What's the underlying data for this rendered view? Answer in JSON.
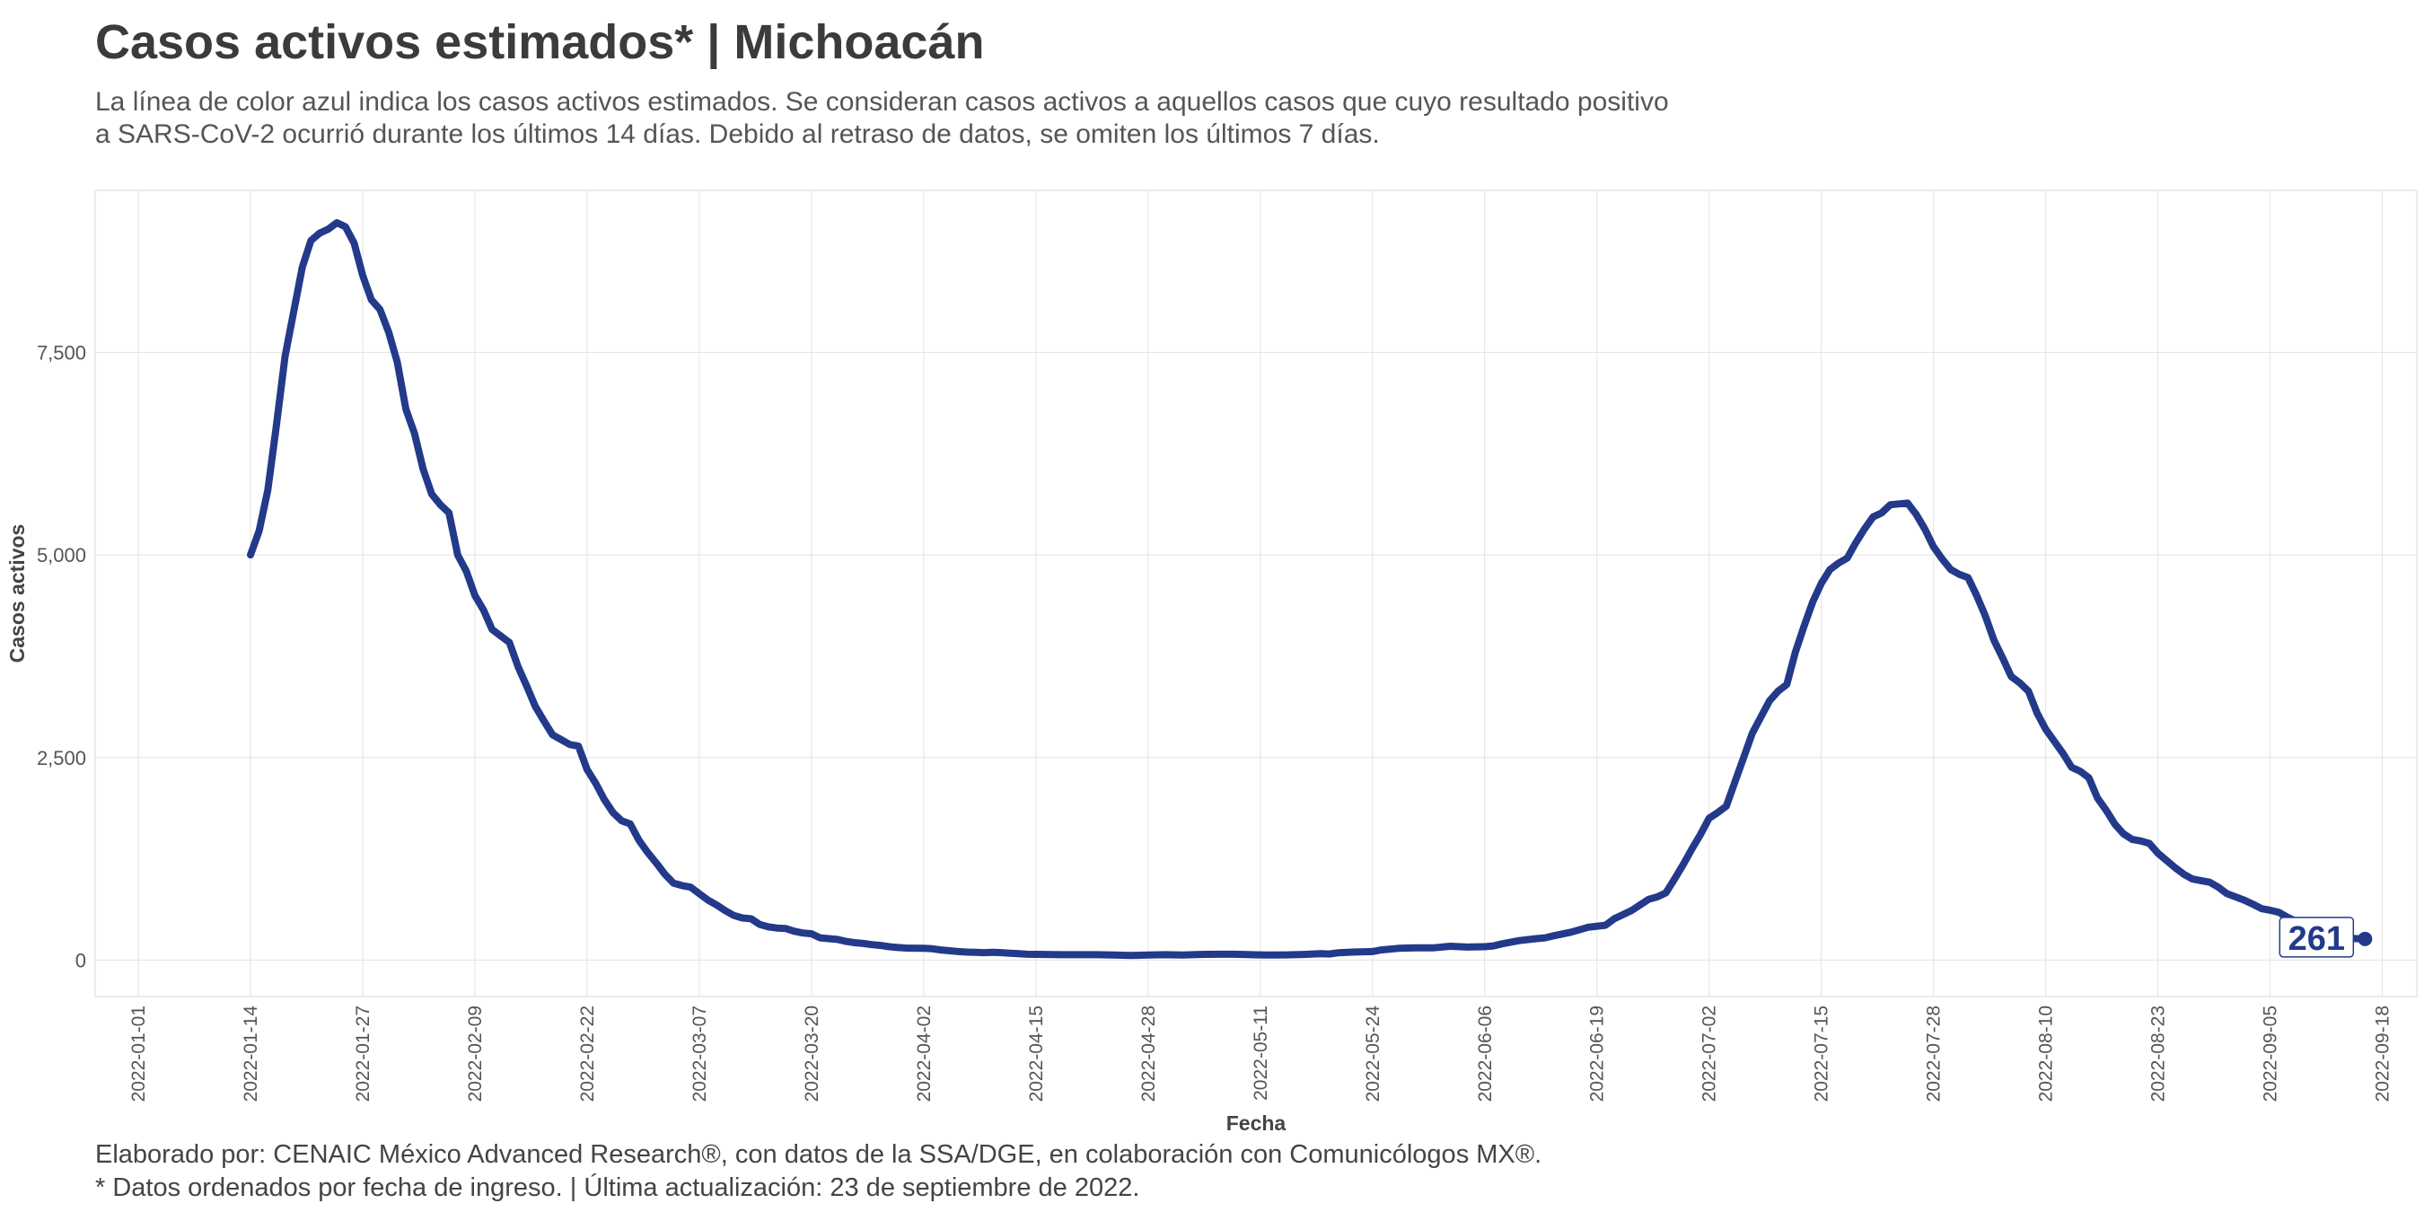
{
  "title": "Casos activos estimados* | Michoacán",
  "subtitle": [
    "La línea de color azul indica los casos activos estimados. Se consideran casos activos a aquellos casos que cuyo resultado positivo",
    "a SARS-CoV-2 ocurrió durante los últimos 14 días. Debido al retraso de datos, se omiten los últimos 7 días."
  ],
  "caption": [
    "Elaborado por: CENAIC México Advanced Research®, con datos de la SSA/DGE, en colaboración con Comunicólogos MX®.",
    "* Datos ordenados por fecha de ingreso. | Última actualización: 23 de septiembre de 2022."
  ],
  "colors": {
    "line": "#233a8a",
    "grid": "#e3e3e3",
    "panel_border": "#e6e6e6"
  },
  "chart_data": {
    "type": "line",
    "title": "Casos activos estimados* | Michoacán",
    "xlabel": "Fecha",
    "ylabel": "Casos activos",
    "x_range": [
      "2021-12-27",
      "2022-09-22"
    ],
    "ylim": [
      -450,
      9500
    ],
    "y_ticks": [
      0,
      2500,
      5000,
      7500
    ],
    "y_tick_labels": [
      "0",
      "2,500",
      "5,000",
      "7,500"
    ],
    "x_ticks": [
      "2022-01-01",
      "2022-01-14",
      "2022-01-27",
      "2022-02-09",
      "2022-02-22",
      "2022-03-07",
      "2022-03-20",
      "2022-04-02",
      "2022-04-15",
      "2022-04-28",
      "2022-05-11",
      "2022-05-24",
      "2022-06-06",
      "2022-06-19",
      "2022-07-02",
      "2022-07-15",
      "2022-07-28",
      "2022-08-10",
      "2022-08-23",
      "2022-09-05",
      "2022-09-18"
    ],
    "end_label": "261",
    "grid": true,
    "series": [
      {
        "color": "#233a8a",
        "points": [
          [
            "2022-01-14",
            5000
          ],
          [
            "2022-01-15",
            5300
          ],
          [
            "2022-01-16",
            5800
          ],
          [
            "2022-01-17",
            6600
          ],
          [
            "2022-01-18",
            7450
          ],
          [
            "2022-01-19",
            8000
          ],
          [
            "2022-01-20",
            8550
          ],
          [
            "2022-01-21",
            8880
          ],
          [
            "2022-01-22",
            8970
          ],
          [
            "2022-01-23",
            9020
          ],
          [
            "2022-01-24",
            9100
          ],
          [
            "2022-01-25",
            9050
          ],
          [
            "2022-01-26",
            8850
          ],
          [
            "2022-01-27",
            8450
          ],
          [
            "2022-01-28",
            8150
          ],
          [
            "2022-01-29",
            8030
          ],
          [
            "2022-01-30",
            7750
          ],
          [
            "2022-01-31",
            7380
          ],
          [
            "2022-02-01",
            6800
          ],
          [
            "2022-02-02",
            6500
          ],
          [
            "2022-02-03",
            6060
          ],
          [
            "2022-02-04",
            5750
          ],
          [
            "2022-02-05",
            5620
          ],
          [
            "2022-02-06",
            5520
          ],
          [
            "2022-02-07",
            5000
          ],
          [
            "2022-02-08",
            4800
          ],
          [
            "2022-02-09",
            4500
          ],
          [
            "2022-02-10",
            4320
          ],
          [
            "2022-02-11",
            4080
          ],
          [
            "2022-02-12",
            4000
          ],
          [
            "2022-02-13",
            3920
          ],
          [
            "2022-02-14",
            3620
          ],
          [
            "2022-02-15",
            3380
          ],
          [
            "2022-02-16",
            3130
          ],
          [
            "2022-02-17",
            2950
          ],
          [
            "2022-02-18",
            2780
          ],
          [
            "2022-02-19",
            2720
          ],
          [
            "2022-02-20",
            2660
          ],
          [
            "2022-02-21",
            2640
          ],
          [
            "2022-02-22",
            2350
          ],
          [
            "2022-02-23",
            2180
          ],
          [
            "2022-02-24",
            1980
          ],
          [
            "2022-02-25",
            1820
          ],
          [
            "2022-02-26",
            1720
          ],
          [
            "2022-02-27",
            1680
          ],
          [
            "2022-02-28",
            1480
          ],
          [
            "2022-03-01",
            1330
          ],
          [
            "2022-03-02",
            1200
          ],
          [
            "2022-03-03",
            1060
          ],
          [
            "2022-03-04",
            950
          ],
          [
            "2022-03-05",
            920
          ],
          [
            "2022-03-06",
            900
          ],
          [
            "2022-03-07",
            820
          ],
          [
            "2022-03-08",
            740
          ],
          [
            "2022-03-09",
            680
          ],
          [
            "2022-03-10",
            610
          ],
          [
            "2022-03-11",
            550
          ],
          [
            "2022-03-12",
            520
          ],
          [
            "2022-03-13",
            510
          ],
          [
            "2022-03-14",
            440
          ],
          [
            "2022-03-15",
            410
          ],
          [
            "2022-03-16",
            395
          ],
          [
            "2022-03-17",
            390
          ],
          [
            "2022-03-18",
            355
          ],
          [
            "2022-03-19",
            335
          ],
          [
            "2022-03-20",
            325
          ],
          [
            "2022-03-21",
            275
          ],
          [
            "2022-03-22",
            265
          ],
          [
            "2022-03-23",
            255
          ],
          [
            "2022-03-24",
            230
          ],
          [
            "2022-03-25",
            215
          ],
          [
            "2022-03-26",
            205
          ],
          [
            "2022-03-27",
            190
          ],
          [
            "2022-03-28",
            180
          ],
          [
            "2022-03-29",
            165
          ],
          [
            "2022-03-30",
            155
          ],
          [
            "2022-03-31",
            148
          ],
          [
            "2022-04-02",
            145
          ],
          [
            "2022-04-03",
            140
          ],
          [
            "2022-04-04",
            125
          ],
          [
            "2022-04-05",
            115
          ],
          [
            "2022-04-06",
            105
          ],
          [
            "2022-04-07",
            98
          ],
          [
            "2022-04-08",
            95
          ],
          [
            "2022-04-09",
            92
          ],
          [
            "2022-04-10",
            95
          ],
          [
            "2022-04-11",
            92
          ],
          [
            "2022-04-12",
            85
          ],
          [
            "2022-04-13",
            78
          ],
          [
            "2022-04-14",
            72
          ],
          [
            "2022-04-16",
            70
          ],
          [
            "2022-04-18",
            66
          ],
          [
            "2022-04-20",
            66
          ],
          [
            "2022-04-22",
            66
          ],
          [
            "2022-04-24",
            62
          ],
          [
            "2022-04-26",
            58
          ],
          [
            "2022-04-28",
            62
          ],
          [
            "2022-04-30",
            66
          ],
          [
            "2022-05-02",
            62
          ],
          [
            "2022-05-04",
            70
          ],
          [
            "2022-05-06",
            72
          ],
          [
            "2022-05-08",
            72
          ],
          [
            "2022-05-10",
            66
          ],
          [
            "2022-05-12",
            62
          ],
          [
            "2022-05-14",
            64
          ],
          [
            "2022-05-16",
            70
          ],
          [
            "2022-05-18",
            80
          ],
          [
            "2022-05-19",
            75
          ],
          [
            "2022-05-20",
            90
          ],
          [
            "2022-05-22",
            100
          ],
          [
            "2022-05-24",
            105
          ],
          [
            "2022-05-25",
            125
          ],
          [
            "2022-05-27",
            145
          ],
          [
            "2022-05-29",
            150
          ],
          [
            "2022-05-31",
            150
          ],
          [
            "2022-06-02",
            170
          ],
          [
            "2022-06-04",
            160
          ],
          [
            "2022-06-06",
            165
          ],
          [
            "2022-06-07",
            175
          ],
          [
            "2022-06-08",
            200
          ],
          [
            "2022-06-10",
            240
          ],
          [
            "2022-06-12",
            265
          ],
          [
            "2022-06-13",
            275
          ],
          [
            "2022-06-14",
            300
          ],
          [
            "2022-06-16",
            345
          ],
          [
            "2022-06-18",
            405
          ],
          [
            "2022-06-20",
            430
          ],
          [
            "2022-06-21",
            510
          ],
          [
            "2022-06-23",
            610
          ],
          [
            "2022-06-24",
            680
          ],
          [
            "2022-06-25",
            750
          ],
          [
            "2022-06-26",
            780
          ],
          [
            "2022-06-27",
            830
          ],
          [
            "2022-06-28",
            1000
          ],
          [
            "2022-06-29",
            1180
          ],
          [
            "2022-06-30",
            1370
          ],
          [
            "2022-07-01",
            1550
          ],
          [
            "2022-07-02",
            1750
          ],
          [
            "2022-07-03",
            1820
          ],
          [
            "2022-07-04",
            1900
          ],
          [
            "2022-07-05",
            2200
          ],
          [
            "2022-07-06",
            2500
          ],
          [
            "2022-07-07",
            2800
          ],
          [
            "2022-07-08",
            3000
          ],
          [
            "2022-07-09",
            3200
          ],
          [
            "2022-07-10",
            3320
          ],
          [
            "2022-07-11",
            3400
          ],
          [
            "2022-07-12",
            3800
          ],
          [
            "2022-07-13",
            4120
          ],
          [
            "2022-07-14",
            4420
          ],
          [
            "2022-07-15",
            4650
          ],
          [
            "2022-07-16",
            4820
          ],
          [
            "2022-07-17",
            4900
          ],
          [
            "2022-07-18",
            4960
          ],
          [
            "2022-07-19",
            5150
          ],
          [
            "2022-07-20",
            5320
          ],
          [
            "2022-07-21",
            5470
          ],
          [
            "2022-07-22",
            5520
          ],
          [
            "2022-07-23",
            5620
          ],
          [
            "2022-07-24",
            5630
          ],
          [
            "2022-07-25",
            5640
          ],
          [
            "2022-07-26",
            5500
          ],
          [
            "2022-07-27",
            5320
          ],
          [
            "2022-07-28",
            5100
          ],
          [
            "2022-07-29",
            4950
          ],
          [
            "2022-07-30",
            4820
          ],
          [
            "2022-07-31",
            4760
          ],
          [
            "2022-08-01",
            4720
          ],
          [
            "2022-08-02",
            4500
          ],
          [
            "2022-08-03",
            4250
          ],
          [
            "2022-08-04",
            3950
          ],
          [
            "2022-08-05",
            3730
          ],
          [
            "2022-08-06",
            3500
          ],
          [
            "2022-08-07",
            3420
          ],
          [
            "2022-08-08",
            3320
          ],
          [
            "2022-08-09",
            3050
          ],
          [
            "2022-08-10",
            2850
          ],
          [
            "2022-08-11",
            2700
          ],
          [
            "2022-08-12",
            2550
          ],
          [
            "2022-08-13",
            2380
          ],
          [
            "2022-08-14",
            2330
          ],
          [
            "2022-08-15",
            2250
          ],
          [
            "2022-08-16",
            2000
          ],
          [
            "2022-08-17",
            1850
          ],
          [
            "2022-08-18",
            1680
          ],
          [
            "2022-08-19",
            1560
          ],
          [
            "2022-08-20",
            1490
          ],
          [
            "2022-08-21",
            1470
          ],
          [
            "2022-08-22",
            1440
          ],
          [
            "2022-08-23",
            1320
          ],
          [
            "2022-08-24",
            1230
          ],
          [
            "2022-08-25",
            1140
          ],
          [
            "2022-08-26",
            1060
          ],
          [
            "2022-08-27",
            1000
          ],
          [
            "2022-08-28",
            980
          ],
          [
            "2022-08-29",
            960
          ],
          [
            "2022-08-30",
            900
          ],
          [
            "2022-08-31",
            820
          ],
          [
            "2022-09-01",
            780
          ],
          [
            "2022-09-02",
            740
          ],
          [
            "2022-09-03",
            690
          ],
          [
            "2022-09-04",
            635
          ],
          [
            "2022-09-05",
            615
          ],
          [
            "2022-09-06",
            590
          ],
          [
            "2022-09-07",
            530
          ],
          [
            "2022-09-08",
            480
          ],
          [
            "2022-09-09",
            420
          ],
          [
            "2022-09-10",
            375
          ],
          [
            "2022-09-11",
            340
          ],
          [
            "2022-09-12",
            315
          ],
          [
            "2022-09-13",
            290
          ],
          [
            "2022-09-14",
            270
          ],
          [
            "2022-09-15",
            265
          ],
          [
            "2022-09-16",
            261
          ]
        ]
      }
    ]
  }
}
